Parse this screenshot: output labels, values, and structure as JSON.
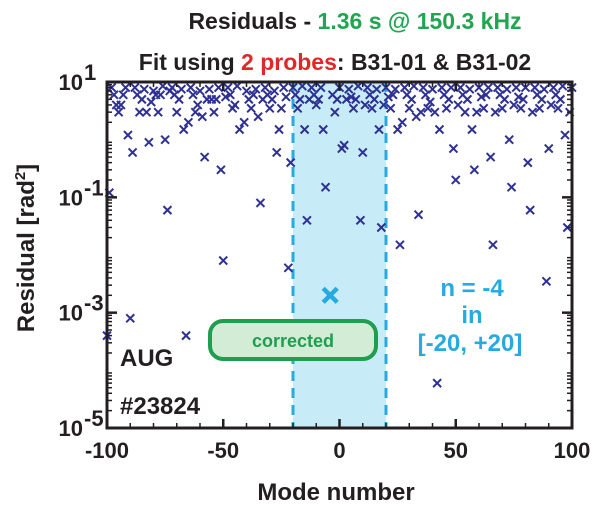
{
  "title": {
    "prefix": "Residuals - ",
    "highlight": "1.36 s @ 150.3 kHz",
    "line2_prefix": "Fit using ",
    "line2_highlight": "2 probes",
    "line2_suffix": ": B31-01 & B31-02"
  },
  "annotations": {
    "machine": "AUG",
    "shot": "#23824",
    "n_value": "n = -4",
    "n_in": "in",
    "n_range": "[-20, +20]",
    "corrected": "corrected"
  },
  "colors": {
    "markers": "#2e3192",
    "highlight_marker": "#27aae1",
    "band_fill": "#c7ecf8",
    "band_edge": "#27aae1",
    "title_green": "#20a550",
    "title_red": "#e02828",
    "cyan_text": "#27aae1",
    "corrected_border": "#1f9e4f",
    "corrected_fill": "#d3ecd6"
  },
  "chart_data": {
    "type": "scatter",
    "xlabel": "Mode number",
    "ylabel": "Residual [rad²]",
    "ylabel_base": "Residual [rad",
    "ylabel_sup": "2",
    "ylabel_end": "]",
    "xlim": [
      -100,
      100
    ],
    "ylim": [
      1e-05,
      10
    ],
    "yscale": "log",
    "xticks": [
      -100,
      -50,
      0,
      50,
      100
    ],
    "xtick_labels": [
      "-100",
      "-50",
      "0",
      "50",
      "100"
    ],
    "yticks": [
      1e-05,
      0.001,
      0.1,
      10
    ],
    "ytick_labels": [
      {
        "base": "10",
        "exp": "-5"
      },
      {
        "base": "10",
        "exp": "-3"
      },
      {
        "base": "10",
        "exp": "-1"
      },
      {
        "base": "10",
        "exp": "1"
      }
    ],
    "grid": false,
    "band": {
      "x0": -20,
      "x1": 20
    },
    "highlight": {
      "x": -4,
      "y": 0.002
    },
    "points": [
      [
        -100,
        0.0004
      ],
      [
        -99,
        0.12
      ],
      [
        -98,
        8
      ],
      [
        -97,
        6
      ],
      [
        -96,
        4
      ],
      [
        -95,
        3
      ],
      [
        -94,
        4
      ],
      [
        -93,
        6
      ],
      [
        -92,
        8
      ],
      [
        -91,
        1.2
      ],
      [
        -90,
        0.0008
      ],
      [
        -89,
        0.6
      ],
      [
        -88,
        8
      ],
      [
        -87,
        6
      ],
      [
        -86,
        3
      ],
      [
        -85,
        5
      ],
      [
        -84,
        7.5
      ],
      [
        -83,
        3
      ],
      [
        -82,
        0.9
      ],
      [
        -81,
        4.5
      ],
      [
        -80,
        7
      ],
      [
        -79,
        6
      ],
      [
        -78,
        3
      ],
      [
        -77,
        6
      ],
      [
        -76,
        8.5
      ],
      [
        -75,
        1
      ],
      [
        -74,
        0.06
      ],
      [
        -73,
        7
      ],
      [
        -72,
        8
      ],
      [
        -71,
        6
      ],
      [
        -70,
        3
      ],
      [
        -69,
        5
      ],
      [
        -68,
        7.5
      ],
      [
        -67,
        1.5
      ],
      [
        -66,
        0.0004
      ],
      [
        -65,
        2
      ],
      [
        -64,
        8
      ],
      [
        -63,
        6
      ],
      [
        -62,
        3
      ],
      [
        -61,
        4
      ],
      [
        -60,
        7
      ],
      [
        -59,
        2.5
      ],
      [
        -58,
        0.5
      ],
      [
        -57,
        5
      ],
      [
        -56,
        7.5
      ],
      [
        -55,
        5
      ],
      [
        -54,
        3
      ],
      [
        -53,
        5
      ],
      [
        -52,
        8
      ],
      [
        -51,
        0.3
      ],
      [
        -50,
        0.008
      ],
      [
        -49,
        5.5
      ],
      [
        -48,
        8
      ],
      [
        -47,
        6
      ],
      [
        -46,
        3.5
      ],
      [
        -45,
        4
      ],
      [
        -44,
        8.5
      ],
      [
        -43,
        1.5
      ],
      [
        -42,
        0.0004
      ],
      [
        -41,
        2
      ],
      [
        -40,
        7
      ],
      [
        -39,
        5
      ],
      [
        -38,
        3.5
      ],
      [
        -37,
        6
      ],
      [
        -36,
        7.5
      ],
      [
        -35,
        2.5
      ],
      [
        -34,
        0.08
      ],
      [
        -33,
        5
      ],
      [
        -32,
        8
      ],
      [
        -31,
        6
      ],
      [
        -30,
        3.5
      ],
      [
        -29,
        5
      ],
      [
        -28,
        7
      ],
      [
        -27,
        0.6
      ],
      [
        -26,
        1.5
      ],
      [
        -25,
        3.5
      ],
      [
        -24,
        8
      ],
      [
        -23,
        5.5
      ],
      [
        -22,
        0.006
      ],
      [
        -21,
        0.4
      ],
      [
        -20,
        8
      ],
      [
        -19,
        6
      ],
      [
        -18,
        3.5
      ],
      [
        -17,
        5
      ],
      [
        -16,
        8.5
      ],
      [
        -15,
        1.5
      ],
      [
        -14,
        0.04
      ],
      [
        -13,
        5
      ],
      [
        -12,
        8
      ],
      [
        -11,
        6
      ],
      [
        -10,
        4
      ],
      [
        -9,
        5
      ],
      [
        -8,
        8
      ],
      [
        -7,
        1.5
      ],
      [
        -6,
        0.15
      ],
      [
        -4,
        0.002
      ],
      [
        -3,
        6
      ],
      [
        -2,
        3
      ],
      [
        -1,
        5
      ],
      [
        0,
        8
      ],
      [
        1,
        0.7
      ],
      [
        2,
        0.8
      ],
      [
        3,
        5
      ],
      [
        4,
        7.5
      ],
      [
        5,
        5.5
      ],
      [
        6,
        3.5
      ],
      [
        7,
        5
      ],
      [
        8,
        8.5
      ],
      [
        9,
        0.04
      ],
      [
        10,
        0.6
      ],
      [
        11,
        4
      ],
      [
        12,
        8
      ],
      [
        13,
        6
      ],
      [
        14,
        3.5
      ],
      [
        15,
        5
      ],
      [
        16,
        7.5
      ],
      [
        17,
        1.5
      ],
      [
        18,
        0.03
      ],
      [
        19,
        4
      ],
      [
        20,
        8
      ],
      [
        21,
        5.5
      ],
      [
        22,
        3.5
      ],
      [
        23,
        6
      ],
      [
        24,
        7.5
      ],
      [
        25,
        1.5
      ],
      [
        26,
        0.015
      ],
      [
        27,
        2
      ],
      [
        28,
        8
      ],
      [
        29,
        6
      ],
      [
        30,
        3.5
      ],
      [
        31,
        5
      ],
      [
        32,
        8.5
      ],
      [
        33,
        2.5
      ],
      [
        34,
        0.05
      ],
      [
        35,
        3
      ],
      [
        36,
        8
      ],
      [
        37,
        6
      ],
      [
        38,
        3.5
      ],
      [
        39,
        4.5
      ],
      [
        40,
        7.5
      ],
      [
        41,
        3
      ],
      [
        42,
        6e-05
      ],
      [
        43,
        1.5
      ],
      [
        44,
        8
      ],
      [
        45,
        6
      ],
      [
        46,
        3.5
      ],
      [
        47,
        5
      ],
      [
        48,
        8
      ],
      [
        49,
        0.7
      ],
      [
        50,
        0.2
      ],
      [
        51,
        4
      ],
      [
        52,
        8
      ],
      [
        53,
        6
      ],
      [
        54,
        3
      ],
      [
        55,
        5
      ],
      [
        56,
        7.5
      ],
      [
        57,
        1.5
      ],
      [
        58,
        0.3
      ],
      [
        59,
        3
      ],
      [
        60,
        8
      ],
      [
        61,
        5.5
      ],
      [
        62,
        3.5
      ],
      [
        63,
        6
      ],
      [
        64,
        8
      ],
      [
        65,
        0.5
      ],
      [
        66,
        0.015
      ],
      [
        67,
        3
      ],
      [
        68,
        8
      ],
      [
        69,
        6
      ],
      [
        70,
        3.5
      ],
      [
        71,
        5
      ],
      [
        72,
        7.5
      ],
      [
        73,
        1
      ],
      [
        74,
        0.15
      ],
      [
        75,
        4
      ],
      [
        76,
        8
      ],
      [
        77,
        5.5
      ],
      [
        78,
        3.5
      ],
      [
        79,
        5
      ],
      [
        80,
        8
      ],
      [
        81,
        0.4
      ],
      [
        82,
        0.06
      ],
      [
        83,
        3
      ],
      [
        84,
        8
      ],
      [
        85,
        6
      ],
      [
        86,
        3.5
      ],
      [
        87,
        5
      ],
      [
        88,
        7.5
      ],
      [
        89,
        0.0035
      ],
      [
        90,
        0.7
      ],
      [
        91,
        4
      ],
      [
        92,
        8
      ],
      [
        93,
        6
      ],
      [
        94,
        3.5
      ],
      [
        95,
        5
      ],
      [
        96,
        8.5
      ],
      [
        97,
        1.2
      ],
      [
        98,
        0.03
      ],
      [
        99,
        3
      ],
      [
        100,
        8
      ]
    ]
  }
}
